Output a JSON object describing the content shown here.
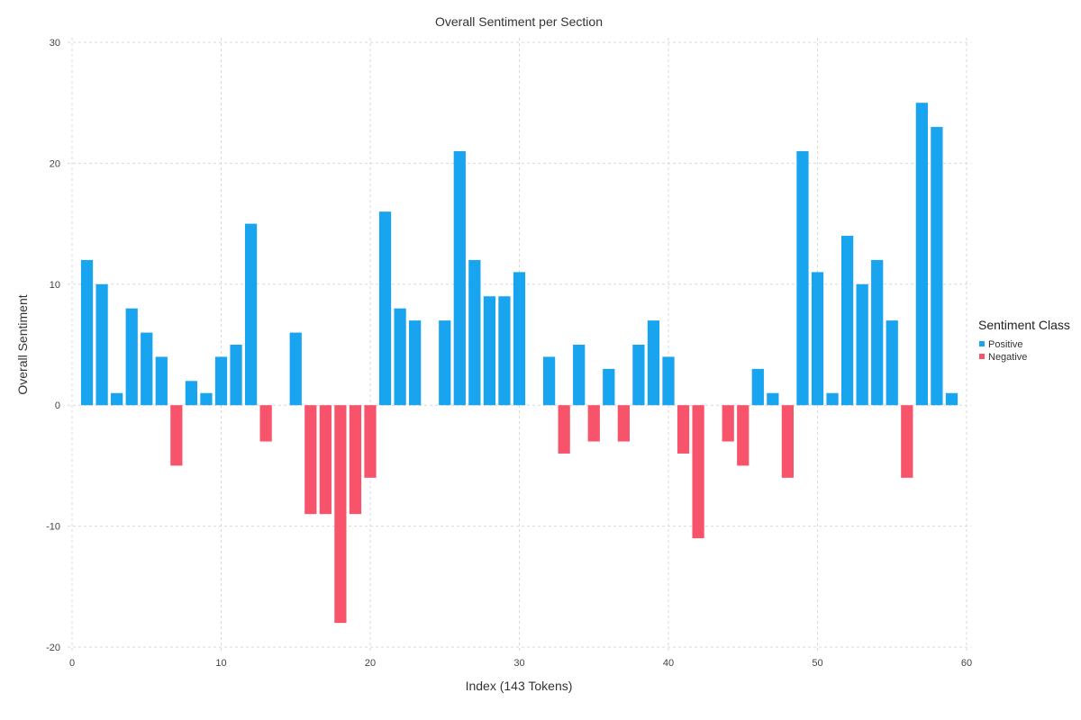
{
  "chart_data": {
    "type": "bar",
    "title": "Overall Sentiment per Section",
    "xlabel": "Index (143 Tokens)",
    "ylabel": "Overall Sentiment",
    "xlim": [
      0,
      60
    ],
    "ylim": [
      -20,
      30
    ],
    "x_ticks": [
      0,
      10,
      20,
      30,
      40,
      50,
      60
    ],
    "y_ticks": [
      -20,
      -10,
      0,
      10,
      20,
      30
    ],
    "grid": true,
    "legend": {
      "title": "Sentiment Class",
      "placement": "right",
      "entries": [
        {
          "name": "Positive",
          "color": "#18a4ee"
        },
        {
          "name": "Negative",
          "color": "#f7546b"
        }
      ]
    },
    "x": [
      1,
      2,
      3,
      4,
      5,
      6,
      7,
      8,
      9,
      10,
      11,
      12,
      13,
      15,
      16,
      17,
      18,
      19,
      20,
      21,
      22,
      23,
      25,
      26,
      27,
      28,
      29,
      30,
      32,
      33,
      34,
      35,
      36,
      37,
      38,
      39,
      40,
      41,
      42,
      44,
      45,
      46,
      47,
      48,
      49,
      50,
      51,
      52,
      53,
      54,
      55,
      56,
      57,
      58,
      59
    ],
    "values": [
      12,
      10,
      1,
      8,
      6,
      4,
      -5,
      2,
      1,
      4,
      5,
      15,
      -3,
      6,
      -9,
      -9,
      -18,
      -9,
      -6,
      16,
      8,
      7,
      7,
      21,
      12,
      9,
      9,
      11,
      4,
      -4,
      5,
      -3,
      3,
      -3,
      5,
      7,
      4,
      -4,
      -11,
      -3,
      -5,
      3,
      1,
      -6,
      21,
      11,
      1,
      14,
      10,
      12,
      7,
      -6,
      25,
      23,
      1
    ]
  }
}
